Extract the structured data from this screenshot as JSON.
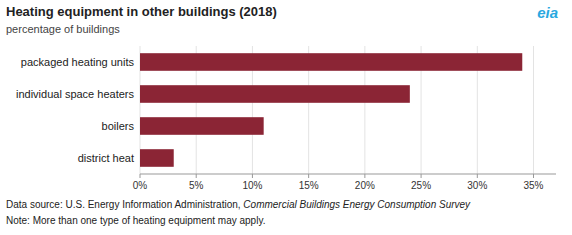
{
  "chart_data": {
    "type": "bar",
    "orientation": "horizontal",
    "title": "Heating equipment in other buildings (2018)",
    "subtitle": "percentage of buildings",
    "categories": [
      "packaged heating units",
      "individual space heaters",
      "boilers",
      "district heat"
    ],
    "values": [
      34,
      24,
      11,
      3
    ],
    "color": "#8B2535",
    "xlim": [
      0,
      37
    ],
    "xticks": [
      {
        "value": 0,
        "label": "0%"
      },
      {
        "value": 5,
        "label": "5%"
      },
      {
        "value": 10,
        "label": "10%"
      },
      {
        "value": 15,
        "label": "15%"
      },
      {
        "value": 20,
        "label": "20%"
      },
      {
        "value": 25,
        "label": "25%"
      },
      {
        "value": 30,
        "label": "30%"
      },
      {
        "value": 35,
        "label": "35%"
      }
    ],
    "grid": true,
    "annotations": [
      {
        "text": "Data source: U.S. Energy Information Administration, "
      },
      {
        "text": "Commercial Buildings Energy Consumption Survey"
      },
      {
        "text": "Note: More than one type of heating equipment may apply."
      },
      {
        "text": "eia",
        "color": "#29a8e0"
      }
    ]
  }
}
